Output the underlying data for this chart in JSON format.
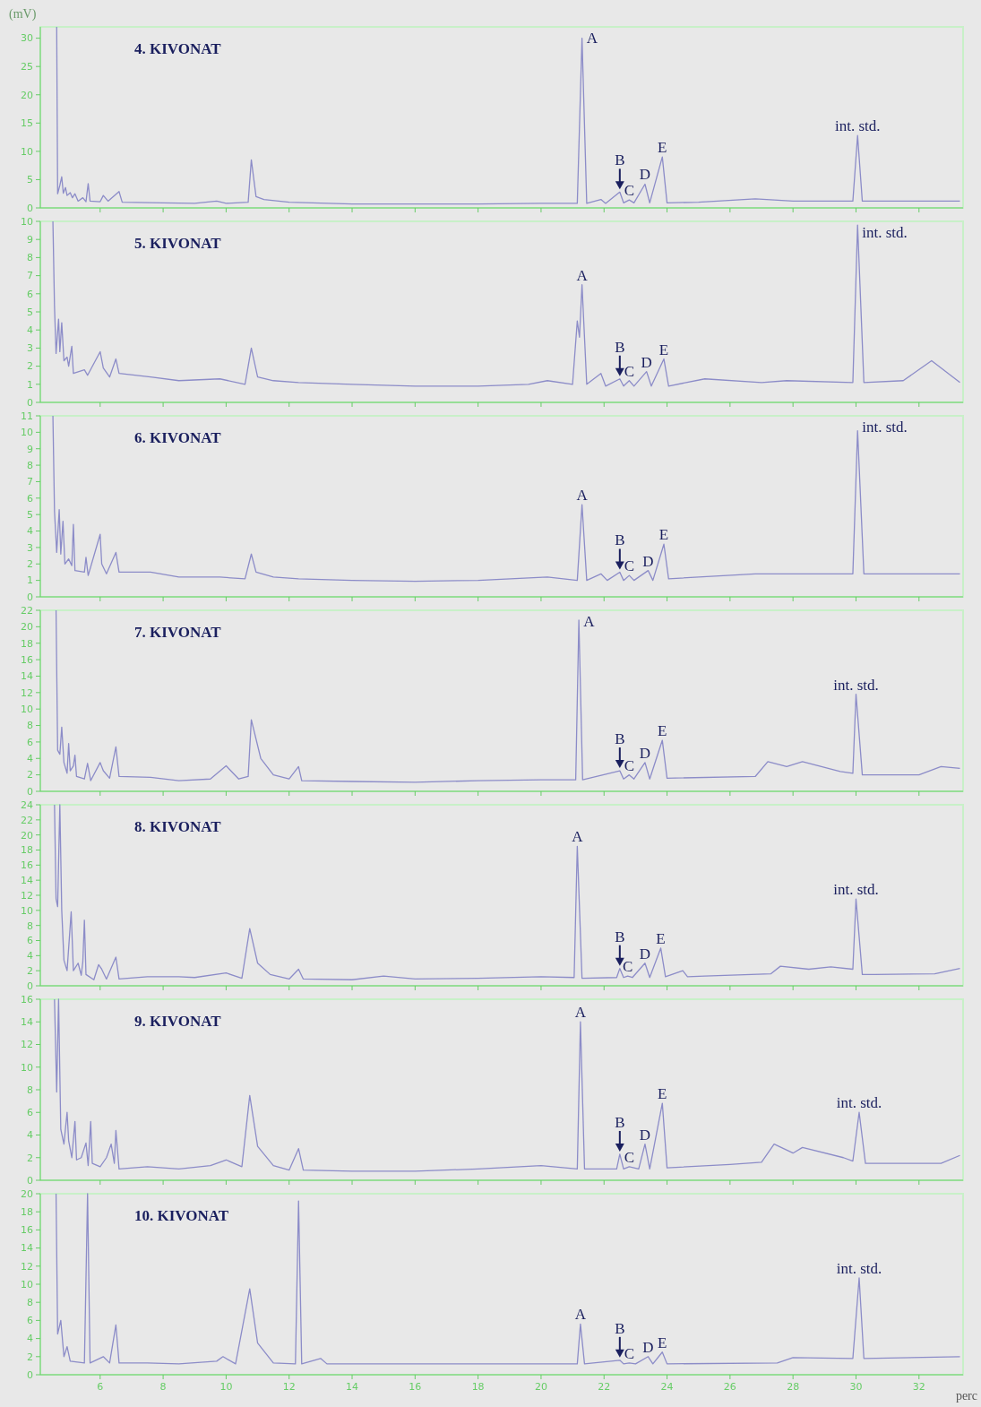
{
  "chart_data": [
    {
      "type": "line",
      "title": "4. KIVONAT",
      "ylabel": "(mV)",
      "xlim": [
        4.1,
        33.4
      ],
      "xticks": [
        6,
        8,
        10,
        12,
        14,
        16,
        18,
        20,
        22,
        24,
        26,
        28,
        30,
        32
      ],
      "ylim": [
        0,
        32
      ],
      "yticks": [
        0,
        5,
        10,
        15,
        20,
        25,
        30
      ],
      "tick_labels": "y",
      "grid": false,
      "x": [
        4.62,
        4.65,
        4.72,
        4.78,
        4.83,
        4.9,
        4.95,
        5.05,
        5.12,
        5.2,
        5.3,
        5.45,
        5.55,
        5.62,
        5.68,
        6.0,
        6.1,
        6.25,
        6.6,
        6.7,
        8.0,
        9.0,
        9.7,
        10.0,
        10.7,
        10.8,
        10.95,
        11.2,
        12.0,
        14.0,
        16.0,
        18.0,
        20.0,
        21.15,
        21.3,
        21.45,
        21.9,
        22.05,
        22.5,
        22.62,
        22.8,
        22.95,
        23.3,
        23.45,
        23.85,
        24.0,
        25.0,
        26.8,
        28.0,
        29.9,
        30.05,
        30.2,
        33.3
      ],
      "series": [
        {
          "color": "#8c8cc8",
          "values": [
            32,
            2.5,
            4.0,
            5.5,
            2.6,
            3.6,
            2.2,
            2.7,
            1.8,
            2.5,
            1.2,
            1.8,
            1.1,
            4.3,
            1.2,
            1.1,
            2.2,
            1.2,
            2.9,
            1.0,
            0.9,
            0.8,
            1.2,
            0.8,
            1.0,
            8.5,
            2.0,
            1.5,
            1.0,
            0.7,
            0.7,
            0.7,
            0.8,
            0.8,
            30,
            0.8,
            1.5,
            0.8,
            2.8,
            0.9,
            1.4,
            0.9,
            4.2,
            0.9,
            9.0,
            0.9,
            1.0,
            1.6,
            1.2,
            1.2,
            12.8,
            1.2,
            1.2
          ]
        }
      ],
      "annotations": [
        {
          "text": "A",
          "x": 21.3,
          "y": 30
        },
        {
          "text": "B",
          "x": 22.5,
          "y": 2.8
        },
        {
          "text": "C",
          "x": 22.8,
          "y": 1.4
        },
        {
          "text": "D",
          "x": 23.3,
          "y": 4.2
        },
        {
          "text": "E",
          "x": 23.85,
          "y": 9.0
        },
        {
          "text": "int. std.",
          "x": 30.05,
          "y": 12.8
        }
      ]
    },
    {
      "type": "line",
      "title": "5. KIVONAT",
      "xlim": [
        4.1,
        33.4
      ],
      "xticks": [
        6,
        8,
        10,
        12,
        14,
        16,
        18,
        20,
        22,
        24,
        26,
        28,
        30,
        32
      ],
      "ylim": [
        0,
        10
      ],
      "yticks": [
        0,
        1,
        2,
        3,
        4,
        5,
        6,
        7,
        8,
        9,
        10
      ],
      "tick_labels": "y",
      "grid": false,
      "x": [
        4.5,
        4.55,
        4.6,
        4.68,
        4.72,
        4.78,
        4.85,
        4.95,
        5.0,
        5.1,
        5.15,
        5.5,
        5.6,
        6.0,
        6.1,
        6.3,
        6.5,
        6.6,
        7.6,
        8.5,
        9.8,
        10.6,
        10.8,
        11.0,
        11.5,
        12.3,
        14.0,
        16.0,
        18.0,
        19.6,
        20.2,
        21.0,
        21.15,
        21.22,
        21.3,
        21.45,
        21.9,
        22.05,
        22.5,
        22.62,
        22.8,
        22.95,
        23.35,
        23.5,
        23.9,
        24.05,
        25.2,
        27.0,
        27.8,
        29.9,
        30.05,
        30.25,
        31.5,
        32.4,
        33.3
      ],
      "series": [
        {
          "color": "#8c8cc8",
          "values": [
            10,
            5.3,
            2.7,
            4.6,
            2.8,
            4.4,
            2.3,
            2.5,
            2.0,
            3.1,
            1.6,
            1.8,
            1.5,
            2.8,
            1.9,
            1.4,
            2.4,
            1.6,
            1.4,
            1.2,
            1.3,
            1.0,
            3.0,
            1.4,
            1.2,
            1.1,
            1.0,
            0.9,
            0.9,
            1.0,
            1.2,
            1.0,
            4.5,
            3.6,
            6.5,
            1.0,
            1.6,
            0.9,
            1.3,
            0.9,
            1.2,
            0.9,
            1.7,
            0.9,
            2.4,
            0.9,
            1.3,
            1.1,
            1.2,
            1.1,
            9.8,
            1.1,
            1.2,
            2.3,
            1.1
          ]
        }
      ],
      "annotations": [
        {
          "text": "A",
          "x": 21.3,
          "y": 6.5
        },
        {
          "text": "B",
          "x": 22.5,
          "y": 1.3
        },
        {
          "text": "C",
          "x": 22.8,
          "y": 1.2
        },
        {
          "text": "D",
          "x": 23.35,
          "y": 1.7
        },
        {
          "text": "E",
          "x": 23.9,
          "y": 2.4
        },
        {
          "text": "int. std.",
          "x": 30.05,
          "y": 9.8
        }
      ]
    },
    {
      "type": "line",
      "title": "6. KIVONAT",
      "xlim": [
        4.1,
        33.4
      ],
      "xticks": [
        6,
        8,
        10,
        12,
        14,
        16,
        18,
        20,
        22,
        24,
        26,
        28,
        30,
        32
      ],
      "ylim": [
        0,
        11
      ],
      "yticks": [
        0,
        1,
        2,
        3,
        4,
        5,
        6,
        7,
        8,
        9,
        10,
        11
      ],
      "tick_labels": "y",
      "grid": false,
      "x": [
        4.5,
        4.55,
        4.62,
        4.7,
        4.75,
        4.82,
        4.88,
        5.0,
        5.1,
        5.15,
        5.2,
        5.5,
        5.55,
        5.62,
        6.0,
        6.05,
        6.2,
        6.5,
        6.6,
        7.6,
        8.5,
        9.8,
        10.6,
        10.8,
        10.95,
        11.5,
        12.3,
        14.0,
        16.0,
        18.0,
        20.2,
        21.15,
        21.3,
        21.45,
        21.9,
        22.1,
        22.5,
        22.62,
        22.8,
        22.95,
        23.4,
        23.55,
        23.9,
        24.05,
        26.8,
        29.9,
        30.05,
        30.25,
        33.3
      ],
      "series": [
        {
          "color": "#8c8cc8",
          "values": [
            11,
            5.2,
            2.7,
            5.3,
            2.6,
            4.6,
            2.0,
            2.3,
            1.9,
            4.4,
            1.6,
            1.5,
            2.4,
            1.3,
            3.8,
            2.0,
            1.4,
            2.7,
            1.5,
            1.5,
            1.2,
            1.2,
            1.1,
            2.6,
            1.5,
            1.2,
            1.1,
            1.0,
            0.95,
            1.0,
            1.2,
            1.0,
            5.6,
            1.0,
            1.4,
            1.0,
            1.5,
            1.0,
            1.3,
            1.0,
            1.6,
            1.0,
            3.2,
            1.1,
            1.4,
            1.4,
            10.1,
            1.4,
            1.4
          ]
        }
      ],
      "annotations": [
        {
          "text": "A",
          "x": 21.3,
          "y": 5.6
        },
        {
          "text": "B",
          "x": 22.5,
          "y": 1.5
        },
        {
          "text": "C",
          "x": 22.8,
          "y": 1.3
        },
        {
          "text": "D",
          "x": 23.4,
          "y": 1.6
        },
        {
          "text": "E",
          "x": 23.9,
          "y": 3.2
        },
        {
          "text": "int. std.",
          "x": 30.05,
          "y": 10.1
        }
      ]
    },
    {
      "type": "line",
      "title": "7. KIVONAT",
      "xlim": [
        4.1,
        33.4
      ],
      "xticks": [
        6,
        8,
        10,
        12,
        14,
        16,
        18,
        20,
        22,
        24,
        26,
        28,
        30,
        32
      ],
      "ylim": [
        0,
        22
      ],
      "yticks": [
        0,
        2,
        4,
        6,
        8,
        10,
        12,
        14,
        16,
        18,
        20,
        22
      ],
      "tick_labels": "y",
      "grid": false,
      "x": [
        4.6,
        4.65,
        4.72,
        4.78,
        4.85,
        4.95,
        5.0,
        5.05,
        5.15,
        5.2,
        5.25,
        5.5,
        5.6,
        5.7,
        6.0,
        6.1,
        6.3,
        6.5,
        6.6,
        7.6,
        8.5,
        9.5,
        10.0,
        10.4,
        10.7,
        10.8,
        11.1,
        11.5,
        12.0,
        12.3,
        12.4,
        14.0,
        16.0,
        18.0,
        20.0,
        21.1,
        21.2,
        21.32,
        22.5,
        22.62,
        22.8,
        22.95,
        23.3,
        23.45,
        23.85,
        24.0,
        26.8,
        27.2,
        27.8,
        28.3,
        29.5,
        29.9,
        30.0,
        30.2,
        32.0,
        32.7,
        33.3
      ],
      "series": [
        {
          "color": "#8c8cc8",
          "values": [
            22,
            5.0,
            4.5,
            7.8,
            3.5,
            2.2,
            5.8,
            2.5,
            3.1,
            4.4,
            1.8,
            1.5,
            3.4,
            1.3,
            3.5,
            2.5,
            1.6,
            5.4,
            1.8,
            1.7,
            1.3,
            1.5,
            3.1,
            1.5,
            1.8,
            8.7,
            4.0,
            2.0,
            1.5,
            3.0,
            1.3,
            1.2,
            1.1,
            1.3,
            1.4,
            1.4,
            20.8,
            1.4,
            2.5,
            1.5,
            2.0,
            1.5,
            3.5,
            1.5,
            6.2,
            1.6,
            1.8,
            3.6,
            3.0,
            3.6,
            2.4,
            2.2,
            11.8,
            2.0,
            2.0,
            3.0,
            2.8
          ]
        }
      ],
      "annotations": [
        {
          "text": "A",
          "x": 21.2,
          "y": 20.8
        },
        {
          "text": "B",
          "x": 22.5,
          "y": 2.5
        },
        {
          "text": "C",
          "x": 22.8,
          "y": 2.0
        },
        {
          "text": "D",
          "x": 23.3,
          "y": 3.5
        },
        {
          "text": "E",
          "x": 23.85,
          "y": 6.2
        },
        {
          "text": "int. std.",
          "x": 30.0,
          "y": 11.8
        }
      ]
    },
    {
      "type": "line",
      "title": "8. KIVONAT",
      "xlim": [
        4.1,
        33.4
      ],
      "xticks": [
        6,
        8,
        10,
        12,
        14,
        16,
        18,
        20,
        22,
        24,
        26,
        28,
        30,
        32
      ],
      "ylim": [
        0,
        24
      ],
      "yticks": [
        0,
        2,
        4,
        6,
        8,
        10,
        12,
        14,
        16,
        18,
        20,
        22,
        24
      ],
      "tick_labels": "y",
      "grid": false,
      "x": [
        4.55,
        4.6,
        4.65,
        4.72,
        4.78,
        4.85,
        4.95,
        5.08,
        5.15,
        5.3,
        5.4,
        5.45,
        5.5,
        5.55,
        5.8,
        5.95,
        6.05,
        6.2,
        6.5,
        6.6,
        7.5,
        8.5,
        9.0,
        10.0,
        10.5,
        10.75,
        11.0,
        11.4,
        12.0,
        12.3,
        12.45,
        14.0,
        15.0,
        16.0,
        18.0,
        20.0,
        21.05,
        21.15,
        21.3,
        22.4,
        22.5,
        22.62,
        22.75,
        22.9,
        23.3,
        23.45,
        23.8,
        23.95,
        24.5,
        24.65,
        25.2,
        27.3,
        27.6,
        28.5,
        29.2,
        29.9,
        30.0,
        30.2,
        30.6,
        32.5,
        33.3
      ],
      "series": [
        {
          "color": "#8c8cc8",
          "values": [
            24,
            11.5,
            10.5,
            24,
            10.0,
            3.4,
            2.0,
            9.8,
            2.0,
            3.0,
            1.4,
            3.2,
            8.7,
            1.5,
            0.8,
            2.8,
            2.2,
            0.9,
            3.8,
            0.9,
            1.2,
            1.2,
            1.1,
            1.7,
            1.0,
            7.6,
            3.0,
            1.5,
            0.9,
            2.2,
            0.9,
            0.8,
            1.3,
            0.9,
            1.0,
            1.2,
            1.1,
            18.5,
            1.0,
            1.1,
            2.3,
            1.1,
            1.3,
            1.1,
            3.0,
            1.1,
            5.0,
            1.2,
            2.0,
            1.2,
            1.3,
            1.6,
            2.6,
            2.2,
            2.5,
            2.2,
            11.5,
            1.5,
            1.5,
            1.6,
            2.3
          ]
        }
      ],
      "annotations": [
        {
          "text": "A",
          "x": 21.15,
          "y": 18.5
        },
        {
          "text": "B",
          "x": 22.5,
          "y": 2.3
        },
        {
          "text": "C",
          "x": 22.75,
          "y": 1.3
        },
        {
          "text": "D",
          "x": 23.3,
          "y": 3.0
        },
        {
          "text": "E",
          "x": 23.8,
          "y": 5.0
        },
        {
          "text": "int. std.",
          "x": 30.0,
          "y": 11.5
        }
      ]
    },
    {
      "type": "line",
      "title": "9. KIVONAT",
      "xlim": [
        4.1,
        33.4
      ],
      "xticks": [
        6,
        8,
        10,
        12,
        14,
        16,
        18,
        20,
        22,
        24,
        26,
        28,
        30,
        32
      ],
      "ylim": [
        0,
        16
      ],
      "yticks": [
        0,
        2,
        4,
        6,
        8,
        10,
        12,
        14,
        16
      ],
      "tick_labels": "y",
      "grid": false,
      "x": [
        4.55,
        4.62,
        4.68,
        4.75,
        4.85,
        4.95,
        5.0,
        5.1,
        5.2,
        5.25,
        5.4,
        5.55,
        5.62,
        5.7,
        5.75,
        6.0,
        6.2,
        6.35,
        6.45,
        6.5,
        6.6,
        7.5,
        8.5,
        9.5,
        10.0,
        10.5,
        10.75,
        11.0,
        11.5,
        12.0,
        12.3,
        12.45,
        14.0,
        16.0,
        18.0,
        20.0,
        21.15,
        21.25,
        21.38,
        22.4,
        22.5,
        22.62,
        22.8,
        23.1,
        23.3,
        23.45,
        23.85,
        24.0,
        26.0,
        27.0,
        27.4,
        28.0,
        28.3,
        29.6,
        29.9,
        30.1,
        30.3,
        32.7,
        33.3
      ],
      "series": [
        {
          "color": "#8c8cc8",
          "values": [
            16,
            7.8,
            16,
            4.5,
            3.2,
            6.0,
            3.5,
            2.0,
            5.2,
            1.8,
            2.0,
            3.3,
            1.3,
            5.2,
            1.5,
            1.2,
            2.0,
            3.2,
            1.5,
            4.4,
            1.0,
            1.2,
            1.0,
            1.3,
            1.8,
            1.2,
            7.5,
            3.0,
            1.3,
            0.9,
            2.8,
            0.9,
            0.8,
            0.8,
            1.0,
            1.3,
            1.0,
            14.0,
            1.0,
            1.0,
            2.3,
            1.0,
            1.2,
            1.0,
            3.2,
            1.0,
            6.8,
            1.1,
            1.4,
            1.6,
            3.2,
            2.4,
            2.9,
            2.0,
            1.7,
            6.0,
            1.5,
            1.5,
            2.2
          ]
        }
      ],
      "annotations": [
        {
          "text": "A",
          "x": 21.25,
          "y": 14.0
        },
        {
          "text": "B",
          "x": 22.5,
          "y": 2.3
        },
        {
          "text": "C",
          "x": 22.8,
          "y": 1.2
        },
        {
          "text": "D",
          "x": 23.3,
          "y": 3.2
        },
        {
          "text": "E",
          "x": 23.85,
          "y": 6.8
        },
        {
          "text": "int. std.",
          "x": 30.1,
          "y": 6.0
        }
      ]
    },
    {
      "type": "line",
      "title": "10. KIVONAT",
      "xlabel": "perc",
      "xlim": [
        4.1,
        33.4
      ],
      "xticks": [
        6,
        8,
        10,
        12,
        14,
        16,
        18,
        20,
        22,
        24,
        26,
        28,
        30,
        32
      ],
      "ylim": [
        0,
        20
      ],
      "yticks": [
        0,
        2,
        4,
        6,
        8,
        10,
        12,
        14,
        16,
        18,
        20
      ],
      "grid": false,
      "x": [
        4.6,
        4.65,
        4.75,
        4.85,
        4.95,
        5.05,
        5.5,
        5.6,
        5.68,
        6.1,
        6.3,
        6.5,
        6.6,
        7.5,
        8.5,
        9.7,
        9.9,
        10.3,
        10.75,
        11.0,
        11.5,
        12.2,
        12.3,
        12.4,
        13.0,
        13.2,
        16.0,
        20.0,
        21.15,
        21.25,
        21.38,
        22.5,
        22.62,
        22.8,
        23.0,
        23.4,
        23.55,
        23.85,
        24.0,
        27.5,
        28.0,
        29.9,
        30.1,
        30.25,
        33.3
      ],
      "series": [
        {
          "color": "#8c8cc8",
          "values": [
            20,
            4.5,
            6.0,
            2.0,
            3.1,
            1.5,
            1.3,
            20,
            1.3,
            2.0,
            1.3,
            5.5,
            1.3,
            1.3,
            1.2,
            1.5,
            2.0,
            1.2,
            9.5,
            3.5,
            1.3,
            1.2,
            19.2,
            1.2,
            1.8,
            1.2,
            1.2,
            1.2,
            1.2,
            5.6,
            1.2,
            1.6,
            1.2,
            1.3,
            1.2,
            2.0,
            1.2,
            2.5,
            1.2,
            1.3,
            1.9,
            1.8,
            10.7,
            1.8,
            2.0
          ]
        }
      ],
      "annotations": [
        {
          "text": "A",
          "x": 21.25,
          "y": 5.6
        },
        {
          "text": "B",
          "x": 22.5,
          "y": 1.6
        },
        {
          "text": "C",
          "x": 22.8,
          "y": 1.3
        },
        {
          "text": "D",
          "x": 23.4,
          "y": 2.0
        },
        {
          "text": "E",
          "x": 23.85,
          "y": 2.5
        },
        {
          "text": "int. std.",
          "x": 30.1,
          "y": 10.7
        }
      ]
    }
  ]
}
